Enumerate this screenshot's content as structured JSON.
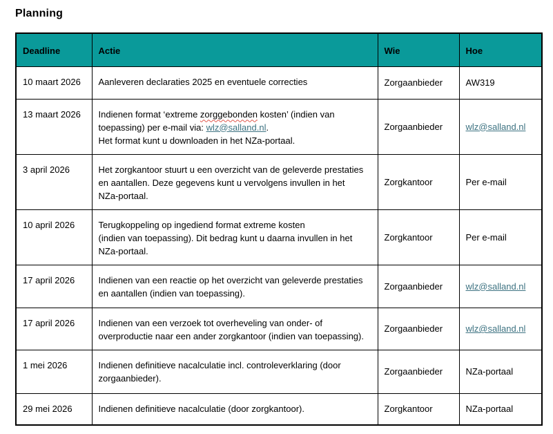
{
  "title": "Planning",
  "colors": {
    "header_bg": "#0a9a9a",
    "border": "#000000",
    "text": "#000000",
    "link": "#3e7382",
    "spellcheck_underline": "#e0544a"
  },
  "table": {
    "columns": [
      {
        "id": "deadline",
        "label": "Deadline"
      },
      {
        "id": "actie",
        "label": "Actie"
      },
      {
        "id": "wie",
        "label": "Wie"
      },
      {
        "id": "hoe",
        "label": "Hoe"
      }
    ],
    "rows": [
      {
        "deadline": "10 maart 2026",
        "actie_lines": [
          [
            {
              "text": "Aanleveren declaraties 2025 en eventuele correcties"
            }
          ]
        ],
        "wie": "Zorgaanbieder",
        "hoe": {
          "text": "AW319",
          "is_link": false
        }
      },
      {
        "deadline": "13 maart 2026",
        "actie_lines": [
          [
            {
              "text": "Indienen format ‘extreme "
            },
            {
              "text": "zorggebonden",
              "misspelled": true
            },
            {
              "text": " kosten’ (indien van"
            }
          ],
          [
            {
              "text": "toepassing) per e-mail via: "
            },
            {
              "text": "wlz@salland.nl",
              "link": true
            },
            {
              "text": "."
            }
          ],
          [
            {
              "text": "Het format kunt u downloaden in het NZa-portaal."
            }
          ]
        ],
        "wie": "Zorgaanbieder",
        "hoe": {
          "text": "wlz@salland.nl",
          "is_link": true
        }
      },
      {
        "deadline": "3 april 2026",
        "actie_lines": [
          [
            {
              "text": "Het zorgkantoor stuurt u een overzicht van de geleverde prestaties"
            }
          ],
          [
            {
              "text": "en aantallen. Deze gegevens kunt u vervolgens invullen in het"
            }
          ],
          [
            {
              "text": "NZa-portaal."
            }
          ]
        ],
        "wie": "Zorgkantoor",
        "hoe": {
          "text": "Per e-mail",
          "is_link": false
        }
      },
      {
        "deadline": "10 april 2026",
        "actie_lines": [
          [
            {
              "text": "Terugkoppeling op ingediend format extreme kosten"
            }
          ],
          [
            {
              "text": "(indien van toepassing). Dit bedrag kunt u daarna invullen in het"
            }
          ],
          [
            {
              "text": "NZa-portaal."
            }
          ]
        ],
        "wie": "Zorgkantoor",
        "hoe": {
          "text": "Per e-mail",
          "is_link": false
        }
      },
      {
        "deadline": "17 april 2026",
        "actie_lines": [
          [
            {
              "text": "Indienen van een reactie op het overzicht van geleverde prestaties"
            }
          ],
          [
            {
              "text": "en aantallen (indien van toepassing)."
            }
          ]
        ],
        "wie": "Zorgaanbieder",
        "hoe": {
          "text": "wlz@salland.nl",
          "is_link": true
        }
      },
      {
        "deadline": "17 april 2026",
        "actie_lines": [
          [
            {
              "text": "Indienen van een verzoek tot overheveling van onder- of"
            }
          ],
          [
            {
              "text": "overproductie naar een ander zorgkantoor (indien van toepassing)."
            }
          ]
        ],
        "wie": "Zorgaanbieder",
        "hoe": {
          "text": "wlz@salland.nl",
          "is_link": true
        }
      },
      {
        "deadline": "1 mei 2026",
        "actie_lines": [
          [
            {
              "text": "Indienen definitieve nacalculatie incl. controleverklaring (door"
            }
          ],
          [
            {
              "text": "zorgaanbieder)."
            }
          ]
        ],
        "wie": "Zorgaanbieder",
        "hoe": {
          "text": "NZa-portaal",
          "is_link": false
        }
      },
      {
        "deadline": "29 mei 2026",
        "actie_lines": [
          [
            {
              "text": "Indienen definitieve nacalculatie (door zorgkantoor)."
            }
          ]
        ],
        "wie": "Zorgkantoor",
        "hoe": {
          "text": "NZa-portaal",
          "is_link": false
        }
      }
    ]
  }
}
